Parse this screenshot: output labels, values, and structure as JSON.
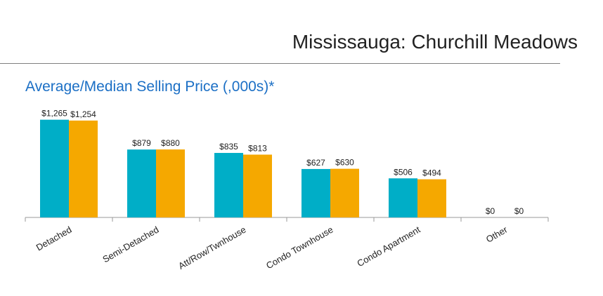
{
  "header": {
    "region_title": "Mississauga: Churchill Meadows"
  },
  "chart_data": {
    "type": "bar",
    "title": "Average/Median Selling Price (,000s)*",
    "xlabel": "",
    "ylabel": "",
    "categories": [
      "Detached",
      "Semi-Detached",
      "Att/Row/Twnhouse",
      "Condo Townhouse",
      "Condo Apartment",
      "Other"
    ],
    "series": [
      {
        "color": "#00aec7",
        "values": [
          1265,
          879,
          835,
          627,
          506,
          0
        ],
        "labels": [
          "$1,265",
          "$879",
          "$835",
          "$627",
          "$506",
          "$0"
        ]
      },
      {
        "color": "#f5a800",
        "values": [
          1254,
          880,
          813,
          630,
          494,
          0
        ],
        "labels": [
          "$1,254",
          "$880",
          "$813",
          "$630",
          "$494",
          "$0"
        ]
      }
    ],
    "ylim": [
      0,
      1380
    ],
    "grid": false,
    "legend": "none"
  }
}
